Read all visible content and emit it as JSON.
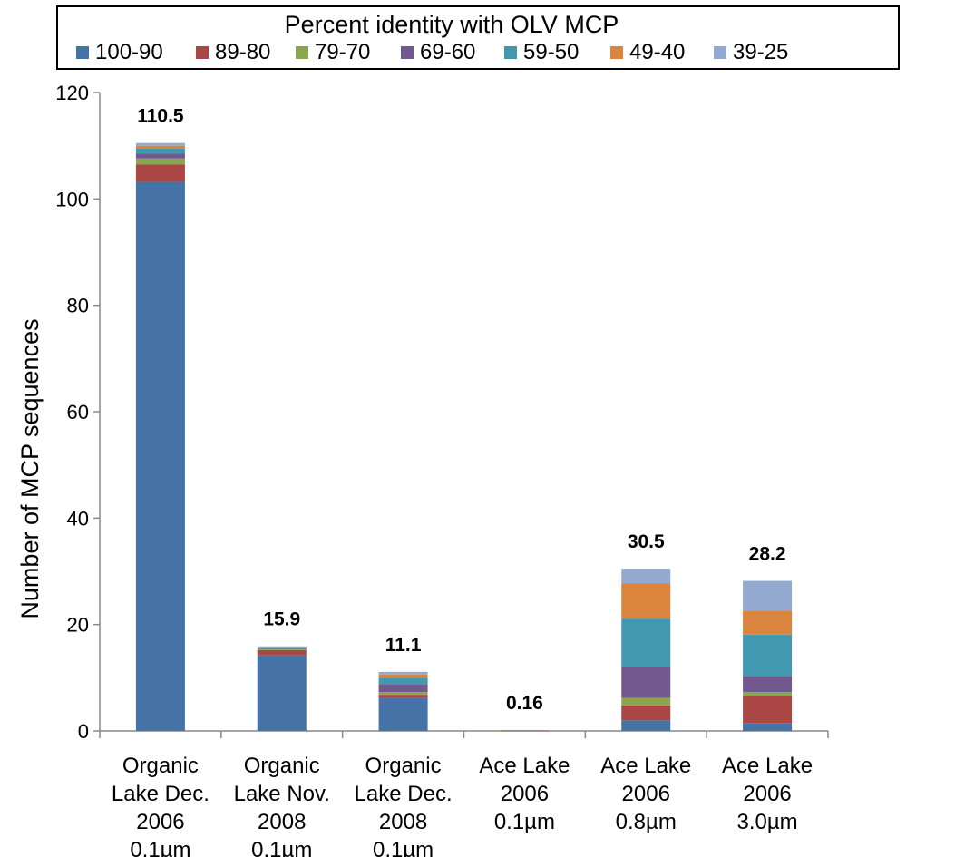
{
  "chart_data": {
    "type": "bar",
    "stacked": true,
    "legend_title": "Percent identity with OLV MCP",
    "legend_position": "top",
    "ylabel": "Number of MCP sequences",
    "xlabel": "",
    "ylim": [
      0,
      120
    ],
    "yticks": [
      "0",
      "20",
      "40",
      "60",
      "80",
      "100",
      "120"
    ],
    "grid": false,
    "categories": [
      [
        "Organic",
        "Lake Dec.",
        "2006",
        "0.1µm"
      ],
      [
        "Organic",
        "Lake Nov.",
        "2008",
        "0.1µm"
      ],
      [
        "Organic",
        "Lake Dec.",
        "2008",
        "0.1µm"
      ],
      [
        "Ace Lake",
        "2006",
        "0.1µm"
      ],
      [
        "Ace Lake",
        "2006",
        "0.8µm"
      ],
      [
        "Ace Lake",
        "2006",
        "3.0µm"
      ]
    ],
    "totals": [
      "110.5",
      "15.9",
      "11.1",
      "0.16",
      "30.5",
      "28.2"
    ],
    "series": [
      {
        "name": "100-90",
        "color": "#4572A7",
        "values": [
          103.2,
          14.2,
          6.3,
          0.02,
          2.0,
          1.5
        ]
      },
      {
        "name": "89-80",
        "color": "#AA4643",
        "values": [
          3.3,
          1.0,
          0.5,
          0.02,
          2.8,
          5.0
        ]
      },
      {
        "name": "79-70",
        "color": "#89A54E",
        "values": [
          1.1,
          0.2,
          0.5,
          0.02,
          1.4,
          0.8
        ]
      },
      {
        "name": "69-60",
        "color": "#71588F",
        "values": [
          0.9,
          0.2,
          1.5,
          0.03,
          5.8,
          3.0
        ]
      },
      {
        "name": "59-50",
        "color": "#4198AF",
        "values": [
          1.0,
          0.1,
          1.2,
          0.03,
          9.1,
          7.8
        ]
      },
      {
        "name": "49-40",
        "color": "#DB843D",
        "values": [
          0.5,
          0.1,
          0.6,
          0.04,
          6.6,
          4.4
        ]
      },
      {
        "name": "39-25",
        "color": "#93A9CF",
        "values": [
          0.5,
          0.1,
          0.5,
          0.0,
          2.8,
          5.7
        ]
      }
    ]
  }
}
